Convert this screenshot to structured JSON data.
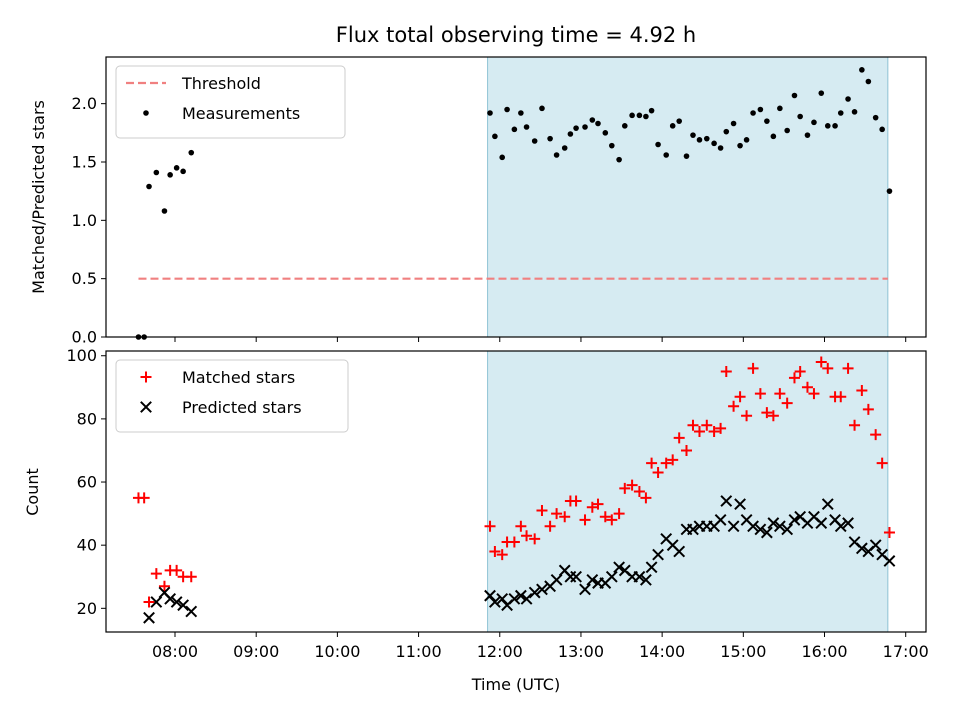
{
  "chart_data": {
    "title": "Flux total observing time = 4.92 h",
    "xlabel": "Time (UTC)",
    "x_unit": "hours UTC",
    "xlim": [
      7.15,
      17.25
    ],
    "x_ticks": [
      {
        "value": 8,
        "label": "08:00"
      },
      {
        "value": 9,
        "label": "09:00"
      },
      {
        "value": 10,
        "label": "10:00"
      },
      {
        "value": 11,
        "label": "11:00"
      },
      {
        "value": 12,
        "label": "12:00"
      },
      {
        "value": 13,
        "label": "13:00"
      },
      {
        "value": 14,
        "label": "14:00"
      },
      {
        "value": 15,
        "label": "15:00"
      },
      {
        "value": 16,
        "label": "16:00"
      },
      {
        "value": 17,
        "label": "17:00"
      }
    ],
    "shaded_span": {
      "start": 11.85,
      "end": 16.78,
      "color": "#add8e6",
      "alpha": 0.5
    },
    "panels": [
      {
        "type": "scatter",
        "ylabel": "Matched/Predicted stars",
        "ylim": [
          0,
          2.4
        ],
        "y_ticks": [
          {
            "value": 0,
            "label": "0.0"
          },
          {
            "value": 0.5,
            "label": "0.5"
          },
          {
            "value": 1.0,
            "label": "1.0"
          },
          {
            "value": 1.5,
            "label": "1.5"
          },
          {
            "value": 2.0,
            "label": "2.0"
          }
        ],
        "legend_position": "upper-left",
        "threshold": {
          "label": "Threshold",
          "value": 0.5,
          "x_start": 7.55,
          "x_end": 16.78,
          "color": "#f08080"
        },
        "series": [
          {
            "name": "Measurements",
            "marker": "dot",
            "color": "#000000",
            "points": [
              [
                7.55,
                0.0
              ],
              [
                7.62,
                0.0
              ],
              [
                7.68,
                1.29
              ],
              [
                7.77,
                1.41
              ],
              [
                7.87,
                1.08
              ],
              [
                7.94,
                1.39
              ],
              [
                8.02,
                1.45
              ],
              [
                8.1,
                1.42
              ],
              [
                8.2,
                1.58
              ],
              [
                11.88,
                1.92
              ],
              [
                11.94,
                1.72
              ],
              [
                12.03,
                1.54
              ],
              [
                12.09,
                1.95
              ],
              [
                12.18,
                1.78
              ],
              [
                12.26,
                1.92
              ],
              [
                12.33,
                1.8
              ],
              [
                12.43,
                1.68
              ],
              [
                12.52,
                1.96
              ],
              [
                12.62,
                1.7
              ],
              [
                12.7,
                1.56
              ],
              [
                12.8,
                1.62
              ],
              [
                12.87,
                1.74
              ],
              [
                12.94,
                1.79
              ],
              [
                13.05,
                1.8
              ],
              [
                13.14,
                1.86
              ],
              [
                13.21,
                1.83
              ],
              [
                13.3,
                1.75
              ],
              [
                13.38,
                1.64
              ],
              [
                13.47,
                1.52
              ],
              [
                13.54,
                1.81
              ],
              [
                13.63,
                1.9
              ],
              [
                13.72,
                1.9
              ],
              [
                13.8,
                1.89
              ],
              [
                13.87,
                1.94
              ],
              [
                13.95,
                1.65
              ],
              [
                14.05,
                1.56
              ],
              [
                14.13,
                1.81
              ],
              [
                14.21,
                1.85
              ],
              [
                14.3,
                1.55
              ],
              [
                14.38,
                1.73
              ],
              [
                14.46,
                1.69
              ],
              [
                14.55,
                1.7
              ],
              [
                14.64,
                1.66
              ],
              [
                14.72,
                1.62
              ],
              [
                14.79,
                1.76
              ],
              [
                14.88,
                1.83
              ],
              [
                14.96,
                1.64
              ],
              [
                15.04,
                1.69
              ],
              [
                15.12,
                1.92
              ],
              [
                15.21,
                1.95
              ],
              [
                15.29,
                1.85
              ],
              [
                15.37,
                1.72
              ],
              [
                15.45,
                1.96
              ],
              [
                15.54,
                1.77
              ],
              [
                15.63,
                2.07
              ],
              [
                15.7,
                1.89
              ],
              [
                15.79,
                1.73
              ],
              [
                15.87,
                1.84
              ],
              [
                15.96,
                2.09
              ],
              [
                16.04,
                1.81
              ],
              [
                16.13,
                1.81
              ],
              [
                16.2,
                1.92
              ],
              [
                16.29,
                2.04
              ],
              [
                16.37,
                1.93
              ],
              [
                16.46,
                2.29
              ],
              [
                16.54,
                2.19
              ],
              [
                16.63,
                1.88
              ],
              [
                16.71,
                1.78
              ],
              [
                16.8,
                1.25
              ]
            ]
          }
        ]
      },
      {
        "type": "scatter",
        "ylabel": "Count",
        "ylim": [
          12.5,
          101.5
        ],
        "y_ticks": [
          {
            "value": 20,
            "label": "20"
          },
          {
            "value": 40,
            "label": "40"
          },
          {
            "value": 60,
            "label": "60"
          },
          {
            "value": 80,
            "label": "80"
          },
          {
            "value": 100,
            "label": "100"
          }
        ],
        "legend_position": "upper-left",
        "series": [
          {
            "name": "Matched stars",
            "marker": "plus",
            "color": "#ff0000",
            "points": [
              [
                7.55,
                55
              ],
              [
                7.62,
                55
              ],
              [
                7.68,
                22
              ],
              [
                7.77,
                31
              ],
              [
                7.87,
                27
              ],
              [
                7.94,
                32
              ],
              [
                8.02,
                32
              ],
              [
                8.1,
                30
              ],
              [
                8.2,
                30
              ],
              [
                11.88,
                46
              ],
              [
                11.94,
                38
              ],
              [
                12.03,
                37
              ],
              [
                12.09,
                41
              ],
              [
                12.18,
                41
              ],
              [
                12.26,
                46
              ],
              [
                12.33,
                43
              ],
              [
                12.43,
                42
              ],
              [
                12.52,
                51
              ],
              [
                12.62,
                46
              ],
              [
                12.7,
                50
              ],
              [
                12.8,
                49
              ],
              [
                12.87,
                54
              ],
              [
                12.94,
                54
              ],
              [
                13.05,
                48
              ],
              [
                13.14,
                52
              ],
              [
                13.21,
                53
              ],
              [
                13.3,
                49
              ],
              [
                13.38,
                48
              ],
              [
                13.47,
                50
              ],
              [
                13.54,
                58
              ],
              [
                13.63,
                59
              ],
              [
                13.72,
                57
              ],
              [
                13.8,
                55
              ],
              [
                13.87,
                66
              ],
              [
                13.95,
                63
              ],
              [
                14.05,
                66
              ],
              [
                14.13,
                67
              ],
              [
                14.21,
                74
              ],
              [
                14.3,
                70
              ],
              [
                14.38,
                78
              ],
              [
                14.46,
                76
              ],
              [
                14.55,
                78
              ],
              [
                14.64,
                76
              ],
              [
                14.72,
                77
              ],
              [
                14.79,
                95
              ],
              [
                14.88,
                84
              ],
              [
                14.96,
                87
              ],
              [
                15.04,
                81
              ],
              [
                15.12,
                96
              ],
              [
                15.21,
                88
              ],
              [
                15.29,
                82
              ],
              [
                15.37,
                81
              ],
              [
                15.45,
                88
              ],
              [
                15.54,
                85
              ],
              [
                15.63,
                93
              ],
              [
                15.7,
                95
              ],
              [
                15.79,
                90
              ],
              [
                15.87,
                88
              ],
              [
                15.96,
                98
              ],
              [
                16.04,
                96
              ],
              [
                16.13,
                87
              ],
              [
                16.2,
                87
              ],
              [
                16.29,
                96
              ],
              [
                16.37,
                78
              ],
              [
                16.46,
                89
              ],
              [
                16.54,
                83
              ],
              [
                16.63,
                75
              ],
              [
                16.71,
                66
              ],
              [
                16.8,
                44
              ]
            ]
          },
          {
            "name": "Predicted stars",
            "marker": "x",
            "color": "#000000",
            "points": [
              [
                7.68,
                17
              ],
              [
                7.77,
                22
              ],
              [
                7.87,
                25
              ],
              [
                7.94,
                23
              ],
              [
                8.02,
                22
              ],
              [
                8.1,
                21
              ],
              [
                8.2,
                19
              ],
              [
                11.88,
                24
              ],
              [
                11.94,
                22
              ],
              [
                12.03,
                23
              ],
              [
                12.09,
                21
              ],
              [
                12.18,
                23
              ],
              [
                12.26,
                24
              ],
              [
                12.33,
                23
              ],
              [
                12.43,
                25
              ],
              [
                12.52,
                26
              ],
              [
                12.62,
                27
              ],
              [
                12.7,
                29
              ],
              [
                12.8,
                32
              ],
              [
                12.87,
                30
              ],
              [
                12.94,
                30
              ],
              [
                13.05,
                26
              ],
              [
                13.14,
                29
              ],
              [
                13.21,
                28
              ],
              [
                13.3,
                28
              ],
              [
                13.38,
                30
              ],
              [
                13.47,
                33
              ],
              [
                13.54,
                32
              ],
              [
                13.63,
                30
              ],
              [
                13.72,
                30
              ],
              [
                13.8,
                29
              ],
              [
                13.87,
                33
              ],
              [
                13.95,
                37
              ],
              [
                14.05,
                42
              ],
              [
                14.13,
                40
              ],
              [
                14.21,
                38
              ],
              [
                14.3,
                45
              ],
              [
                14.38,
                45
              ],
              [
                14.46,
                46
              ],
              [
                14.55,
                46
              ],
              [
                14.64,
                46
              ],
              [
                14.72,
                48
              ],
              [
                14.79,
                54
              ],
              [
                14.88,
                46
              ],
              [
                14.96,
                53
              ],
              [
                15.04,
                48
              ],
              [
                15.12,
                46
              ],
              [
                15.21,
                45
              ],
              [
                15.29,
                44
              ],
              [
                15.37,
                47
              ],
              [
                15.45,
                46
              ],
              [
                15.54,
                45
              ],
              [
                15.63,
                48
              ],
              [
                15.7,
                49
              ],
              [
                15.79,
                47
              ],
              [
                15.87,
                49
              ],
              [
                15.96,
                47
              ],
              [
                16.04,
                53
              ],
              [
                16.13,
                48
              ],
              [
                16.2,
                46
              ],
              [
                16.29,
                47
              ],
              [
                16.37,
                41
              ],
              [
                16.46,
                39
              ],
              [
                16.54,
                38
              ],
              [
                16.63,
                40
              ],
              [
                16.71,
                37
              ],
              [
                16.8,
                35
              ]
            ]
          }
        ]
      }
    ]
  }
}
